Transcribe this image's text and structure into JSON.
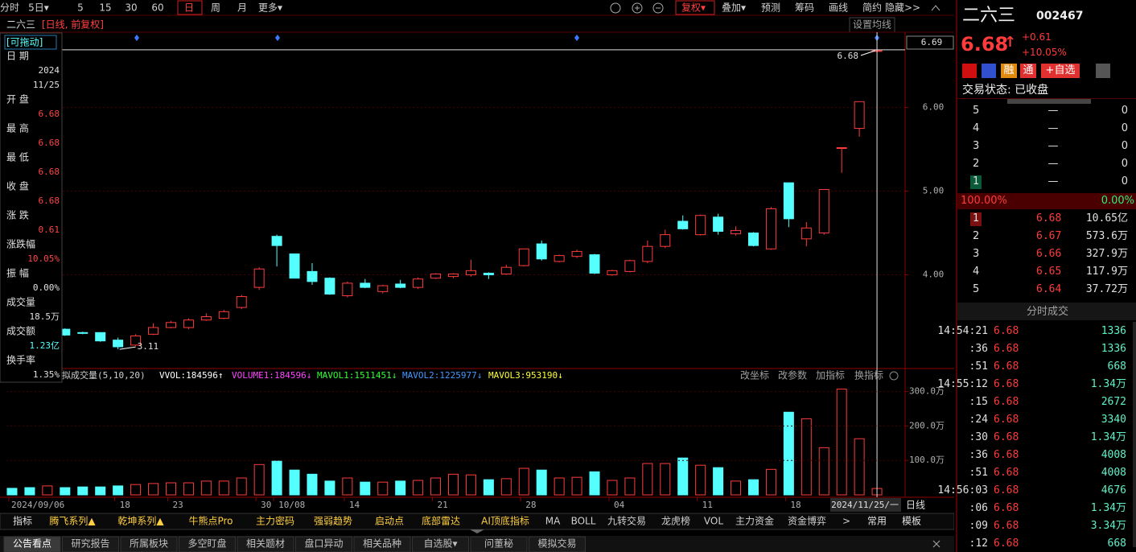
{
  "toolbar": {
    "left": [
      "分时",
      "5日▾",
      "5",
      "15",
      "30",
      "60",
      "日",
      "周",
      "月",
      "更多▾"
    ],
    "active": 6,
    "right": [
      "复权▾",
      "叠加▾",
      "预测",
      "筹码",
      "画线",
      "简约",
      "隐藏>>"
    ]
  },
  "chart_header": {
    "name": "二六三",
    "mode": "[日线, 前复权]",
    "ma_setting": "设置均线"
  },
  "info_panel": {
    "drag": "[可拖动]",
    "date_label": "日 期",
    "date_year": "2024",
    "date_md": "11/25",
    "fields": [
      {
        "label": "开 盘",
        "value": "6.68",
        "color": "#ff4545"
      },
      {
        "label": "最 高",
        "value": "6.68",
        "color": "#ff4545"
      },
      {
        "label": "最 低",
        "value": "6.68",
        "color": "#ff4545"
      },
      {
        "label": "收 盘",
        "value": "6.68",
        "color": "#ff4545"
      },
      {
        "label": "涨 跌",
        "value": "0.61",
        "color": "#ff4545"
      },
      {
        "label": "涨跌幅",
        "value": "10.05%",
        "color": "#ff4545"
      },
      {
        "label": "振 幅",
        "value": "0.00%",
        "color": "#e0e0e0"
      },
      {
        "label": "成交量",
        "value": "18.5万",
        "color": "#e0e0e0"
      },
      {
        "label": "成交额",
        "value": "1.23亿",
        "color": "#54ffff"
      },
      {
        "label": "换手率",
        "value": "1.35%",
        "color": "#e0e0e0"
      }
    ]
  },
  "chart_data": {
    "type": "candlestick",
    "categories": [
      "2024/09/06",
      null,
      null,
      null,
      null,
      null,
      "18",
      null,
      null,
      "23",
      null,
      null,
      null,
      null,
      "30",
      "10/08",
      null,
      null,
      null,
      "14",
      null,
      null,
      null,
      null,
      "21",
      null,
      null,
      null,
      null,
      "28",
      null,
      null,
      null,
      null,
      "04",
      null,
      null,
      null,
      null,
      "11",
      null,
      null,
      null,
      null,
      "18",
      null,
      null,
      null,
      null,
      "2024/11/25/一"
    ],
    "open": [
      3.4,
      3.35,
      3.32,
      3.35,
      3.31,
      3.31,
      3.22,
      3.16,
      3.29,
      3.37,
      3.37,
      3.46,
      3.48,
      3.61,
      3.85,
      4.46,
      4.25,
      4.04,
      3.96,
      3.75,
      3.9,
      3.8,
      3.89,
      3.85,
      3.96,
      3.98,
      4.0,
      4.02,
      4.01,
      4.11,
      4.37,
      4.16,
      4.22,
      4.24,
      4.0,
      4.04,
      4.16,
      4.34,
      4.64,
      4.48,
      4.69,
      4.49,
      4.5,
      4.31,
      5.1,
      4.43,
      4.5,
      5.52,
      5.75,
      6.68
    ],
    "high": [
      3.42,
      3.37,
      3.38,
      3.36,
      3.32,
      3.31,
      3.25,
      3.29,
      3.42,
      3.45,
      3.48,
      3.54,
      3.58,
      3.76,
      4.09,
      4.48,
      4.25,
      4.14,
      3.97,
      3.92,
      3.95,
      3.88,
      3.94,
      3.97,
      4.02,
      4.02,
      4.18,
      4.03,
      4.12,
      4.31,
      4.41,
      4.24,
      4.3,
      4.25,
      4.06,
      4.18,
      4.41,
      4.54,
      4.71,
      4.72,
      4.73,
      4.58,
      4.51,
      4.81,
      5.1,
      4.63,
      5.02,
      5.52,
      6.07,
      6.68
    ],
    "low": [
      3.33,
      3.3,
      3.3,
      3.27,
      3.29,
      3.2,
      3.11,
      3.15,
      3.28,
      3.36,
      3.35,
      3.45,
      3.47,
      3.59,
      3.82,
      4.1,
      3.96,
      3.88,
      3.76,
      3.73,
      3.84,
      3.78,
      3.84,
      3.83,
      3.95,
      3.96,
      3.98,
      3.95,
      4.0,
      4.1,
      4.17,
      4.15,
      4.2,
      4.01,
      3.99,
      4.03,
      4.14,
      4.32,
      4.54,
      4.47,
      4.48,
      4.47,
      4.34,
      4.3,
      4.57,
      4.34,
      4.48,
      5.22,
      5.65,
      6.68
    ],
    "close": [
      3.35,
      3.32,
      3.36,
      3.28,
      3.3,
      3.21,
      3.14,
      3.27,
      3.37,
      3.43,
      3.46,
      3.5,
      3.56,
      3.74,
      4.07,
      4.35,
      3.96,
      3.92,
      3.77,
      3.9,
      3.85,
      3.87,
      3.85,
      3.95,
      4.01,
      4.01,
      4.05,
      4.0,
      4.09,
      4.31,
      4.19,
      4.23,
      4.28,
      4.02,
      4.05,
      4.17,
      4.34,
      4.48,
      4.55,
      4.71,
      4.52,
      4.53,
      4.35,
      4.79,
      4.67,
      4.56,
      5.02,
      5.52,
      6.07,
      6.68
    ],
    "up_color": "#ff3b3b",
    "down_color": "#54ffff",
    "ylim": [
      2.88,
      6.9
    ],
    "yticks": [
      {
        "value": 4,
        "label": "4.00"
      },
      {
        "value": 5,
        "label": "5.00"
      },
      {
        "value": 6,
        "label": "6.00"
      }
    ],
    "cursor_price": 6.69,
    "max_label": 6.68,
    "min_label": 3.11,
    "grid": true,
    "x_axis_label": "日线",
    "volume": {
      "values": [
        19,
        21,
        26,
        21,
        23,
        23,
        26,
        30,
        33,
        35,
        35,
        40,
        40,
        49,
        88,
        98,
        72,
        60,
        40,
        49,
        37,
        37,
        40,
        42,
        49,
        60,
        58,
        44,
        47,
        77,
        72,
        49,
        51,
        67,
        42,
        49,
        91,
        91,
        107,
        86,
        79,
        40,
        44,
        74,
        240,
        221,
        137,
        307,
        163,
        18.5
      ],
      "ylim": [
        0,
        320
      ],
      "yticks": [
        {
          "value": 100,
          "label": "100.0万"
        },
        {
          "value": 200,
          "label": "200.0万"
        },
        {
          "value": 300,
          "label": "300.0万"
        }
      ],
      "legend": [
        {
          "text": "拟成交量(5,10,20)",
          "color": "#d0d0d0"
        },
        {
          "text": "VVOL:184596↑",
          "color": "#ffffff"
        },
        {
          "text": "VOLUME1:184596↓",
          "color": "#ff44ff"
        },
        {
          "text": "MAVOL1:1511451↓",
          "color": "#33ff33"
        },
        {
          "text": "MAVOL2:1225977↓",
          "color": "#4499ff"
        },
        {
          "text": "MAVOL3:953190↓",
          "color": "#ffff33"
        }
      ],
      "tools": [
        "改坐标",
        "改参数",
        "加指标",
        "换指标"
      ]
    }
  },
  "indicator_tabs": [
    "指标",
    "腾飞系列▲",
    "乾坤系列▲",
    "牛熊点Pro",
    "主力密码",
    "强弱趋势",
    "启动点",
    "底部雷达",
    "AI顶底指标",
    "MA",
    "BOLL",
    "九转交易",
    "龙虎榜",
    "VOL",
    "主力资金",
    "资金博弈",
    ">",
    "常用",
    "模板"
  ],
  "bottom_tabs": [
    "公告看点",
    "研究报告",
    "所属板块",
    "多空盯盘",
    "相关题材",
    "盘口异动",
    "相关品种",
    "自选股▾",
    "问董秘",
    "模拟交易"
  ],
  "quote": {
    "name": "二六三",
    "code": "002467",
    "price": "6.68",
    "price_arrow": "↑",
    "change": "+0.61",
    "change_pct": "+10.05%",
    "badges": [
      "融",
      "通",
      "+自选"
    ],
    "status": "交易状态: 已收盘",
    "sell": [
      [
        "5",
        "—",
        "0"
      ],
      [
        "4",
        "—",
        "0"
      ],
      [
        "3",
        "—",
        "0"
      ],
      [
        "2",
        "—",
        "0"
      ],
      [
        "1",
        "—",
        "0"
      ]
    ],
    "ratio_buy": "100.00%",
    "ratio_sell": "0.00%",
    "buy": [
      [
        "1",
        "6.68",
        "10.65亿"
      ],
      [
        "2",
        "6.67",
        "573.6万"
      ],
      [
        "3",
        "6.66",
        "327.9万"
      ],
      [
        "4",
        "6.65",
        "117.9万"
      ],
      [
        "5",
        "6.64",
        "37.72万"
      ]
    ],
    "trades_title": "分时成交",
    "trades": [
      [
        "14:54:21",
        "6.68",
        "1336"
      ],
      [
        ":36",
        "6.68",
        "1336"
      ],
      [
        ":51",
        "6.68",
        "668"
      ],
      [
        "14:55:12",
        "6.68",
        "1.34万"
      ],
      [
        ":15",
        "6.68",
        "2672"
      ],
      [
        ":24",
        "6.68",
        "3340"
      ],
      [
        ":30",
        "6.68",
        "1.34万"
      ],
      [
        ":36",
        "6.68",
        "4008"
      ],
      [
        ":51",
        "6.68",
        "4008"
      ],
      [
        "14:56:03",
        "6.68",
        "4676"
      ],
      [
        ":06",
        "6.68",
        "1.34万"
      ],
      [
        ":09",
        "6.68",
        "3.34万"
      ],
      [
        ":12",
        "6.68",
        "668"
      ]
    ]
  }
}
